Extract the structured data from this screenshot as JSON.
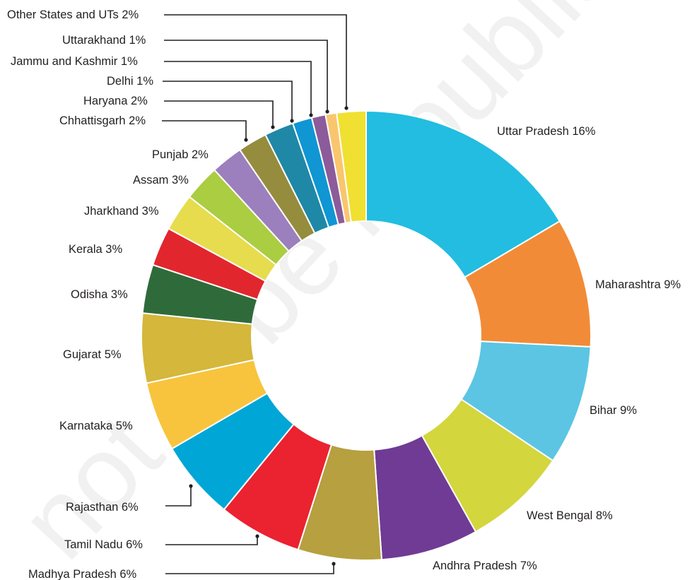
{
  "chart_data": {
    "type": "pie",
    "style": "donut",
    "title": "",
    "categories": [
      "Uttar Pradesh",
      "Maharashtra",
      "Bihar",
      "West Bengal",
      "Andhra Pradesh",
      "Madhya Pradesh",
      "Tamil Nadu",
      "Rajasthan",
      "Karnataka",
      "Gujarat",
      "Odisha",
      "Kerala",
      "Jharkhand",
      "Assam",
      "Punjab",
      "Chhattisgarh",
      "Haryana",
      "Delhi",
      "Jammu and Kashmir",
      "Uttarakhand",
      "Other States and UTs"
    ],
    "values": [
      16.5,
      9.3,
      8.6,
      7.5,
      7.0,
      6.0,
      6.0,
      5.7,
      5.0,
      5.0,
      3.5,
      2.8,
      2.7,
      2.6,
      2.3,
      2.1,
      2.1,
      1.4,
      1.0,
      0.8,
      2.1
    ],
    "labels": [
      "Uttar Pradesh 16%",
      "Maharashtra 9%",
      "Bihar 9%",
      "West Bengal 8%",
      "Andhra Pradesh 7%",
      "Madhya Pradesh 6%",
      "Tamil Nadu 6%",
      "Rajasthan 6%",
      "Karnataka 5%",
      "Gujarat 5%",
      "Odisha 3%",
      "Kerala 3%",
      "Jharkhand 3%",
      "Assam 3%",
      "Punjab 2%",
      "Chhattisgarh 2%",
      "Haryana 2%",
      "Delhi 1%",
      "Jammu and Kashmir 1%",
      "Uttarakhand 1%",
      "Other States and UTs 2%"
    ],
    "colors": [
      "#22bde0",
      "#f28b37",
      "#5cc5e3",
      "#d3d63c",
      "#6f3b94",
      "#b6a03f",
      "#eb2230",
      "#00a6d6",
      "#f8c43d",
      "#d4b73b",
      "#2f6b3a",
      "#e2262e",
      "#e6dc4d",
      "#aacd41",
      "#9c7fbd",
      "#958c3d",
      "#1f88a6",
      "#0f96d3",
      "#8c5b9a",
      "#f9c66e",
      "#f0e032"
    ],
    "legend": "none",
    "watermark": "not to be republished"
  }
}
